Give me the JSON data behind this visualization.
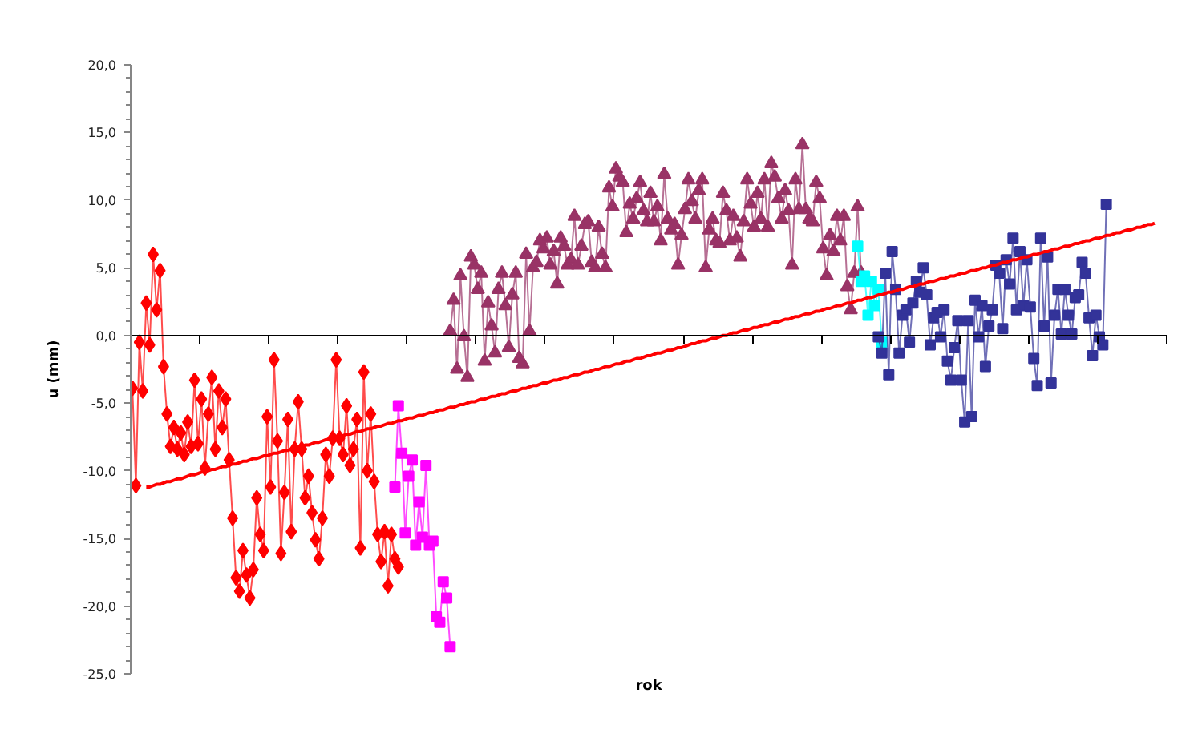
{
  "chart_data": {
    "type": "line",
    "xlabel": "rok",
    "ylabel": "u (mm)",
    "tick_labels": "y",
    "ylim": [
      -25,
      20
    ],
    "yticks": [
      {
        "value": -25,
        "label": "-25,0"
      },
      {
        "value": -20,
        "label": "-20,0"
      },
      {
        "value": -15,
        "label": "-15,0"
      },
      {
        "value": -10,
        "label": "-10,0"
      },
      {
        "value": -5,
        "label": "-5,0"
      },
      {
        "value": 0,
        "label": "0,0"
      },
      {
        "value": 5,
        "label": "5,0"
      },
      {
        "value": 10,
        "label": "10,0"
      },
      {
        "value": 15,
        "label": "15,0"
      },
      {
        "value": 20,
        "label": "20,0"
      }
    ],
    "categories": [
      null,
      null,
      null,
      null,
      null,
      null,
      null,
      null,
      null,
      null,
      null,
      null,
      null,
      null,
      null,
      null,
      null,
      null,
      null,
      null,
      null,
      null,
      null,
      null,
      null,
      null,
      null,
      null,
      null,
      null,
      null,
      null,
      null,
      null,
      null,
      null,
      null,
      null,
      null,
      null,
      null,
      null,
      null,
      null,
      null,
      null,
      null,
      null,
      null,
      null,
      null,
      null,
      null,
      null,
      null,
      null,
      null,
      null,
      null,
      null,
      null,
      null,
      null,
      null,
      null,
      null,
      null,
      null,
      null,
      null,
      null,
      null,
      null,
      null,
      null,
      null,
      null,
      null,
      null,
      null,
      null,
      null,
      null,
      null,
      null,
      null,
      null,
      null,
      null,
      null,
      null,
      null,
      null,
      null,
      null,
      null,
      null,
      null,
      null,
      null,
      null,
      null,
      null,
      null,
      null,
      null,
      null,
      null,
      null,
      null,
      null,
      null,
      null,
      null,
      null,
      null,
      null,
      null,
      null,
      null,
      null,
      null,
      null,
      null,
      null,
      null,
      null,
      null,
      null,
      null,
      null,
      null,
      null,
      null,
      null,
      null,
      null,
      null,
      null,
      null,
      null,
      null,
      null,
      null,
      null,
      null,
      null,
      null,
      null,
      null,
      null,
      null,
      null,
      null,
      null,
      null,
      null,
      null,
      null,
      null,
      null,
      null,
      null,
      null,
      null,
      null,
      null,
      null,
      null,
      null,
      null,
      null,
      null,
      null,
      null,
      null,
      null,
      null,
      null,
      null,
      null,
      null,
      null,
      null,
      null,
      null,
      null,
      null,
      null,
      null,
      null,
      null,
      null,
      null,
      null,
      null,
      null,
      null,
      null,
      null,
      null,
      null,
      null,
      null,
      null,
      null,
      null,
      null,
      null,
      null,
      null,
      null,
      null,
      null,
      null,
      null,
      null,
      null,
      null,
      null,
      null,
      null,
      null,
      null,
      null,
      null,
      null,
      null,
      null,
      null,
      null,
      null,
      null,
      null,
      null,
      null,
      null,
      null,
      null,
      null,
      null,
      null,
      null,
      null,
      null,
      null,
      null,
      null,
      null,
      null,
      null,
      null,
      null,
      null,
      null,
      null,
      null,
      null,
      null,
      null,
      null,
      null,
      null,
      null,
      null,
      null,
      null,
      null,
      null,
      null,
      null,
      null,
      null,
      null,
      null,
      null,
      null,
      null,
      null,
      null,
      null,
      null,
      null,
      null,
      null,
      null,
      null,
      null,
      null,
      null,
      null,
      null,
      null,
      null,
      null,
      null,
      null,
      null,
      null,
      null
    ],
    "series": [
      {
        "marker": "diamond",
        "color": "#ff0000",
        "values": [
          -3.9,
          -11.1,
          -0.5,
          -4.1,
          2.4,
          -0.7,
          6.0,
          1.9,
          4.8,
          -2.3,
          -5.8,
          -8.2,
          -6.8,
          -8.4,
          -7.2,
          -8.8,
          -6.4,
          -8.2,
          -3.3,
          -8.0,
          -4.7,
          -9.8,
          -5.8,
          -3.1,
          -8.4,
          -4.1,
          -6.8,
          -4.7,
          -9.2,
          -13.5,
          -17.9,
          -18.9,
          -15.9,
          -17.7,
          -19.4,
          -17.3,
          -12.0,
          -14.7,
          -15.9,
          -6.0,
          -11.2,
          -1.8,
          -7.8,
          -16.1,
          -11.6,
          -6.2,
          -14.5,
          -8.4,
          -4.9,
          -8.4,
          -12.0,
          -10.4,
          -13.1,
          -15.1,
          -16.5,
          -13.5,
          -8.8,
          -10.4,
          -7.6,
          -1.8,
          -7.6,
          -8.8,
          -5.2,
          -9.6,
          -8.4,
          -6.2,
          -15.7,
          -2.7,
          -10.0,
          -5.8,
          -10.8,
          -14.7,
          -16.7,
          -14.5,
          -18.5,
          -14.7,
          -16.5,
          -17.1,
          null,
          null,
          null,
          null,
          null,
          null,
          null,
          null,
          null,
          null,
          null,
          null,
          null,
          null,
          null,
          null,
          null,
          null,
          null,
          null,
          null,
          null,
          null,
          null,
          null,
          null,
          null,
          null,
          null,
          null,
          null,
          null,
          null,
          null,
          null,
          null,
          null,
          null,
          null,
          null,
          null,
          null,
          null,
          null,
          null,
          null,
          null,
          null,
          null,
          null,
          null,
          null,
          null,
          null,
          null,
          null,
          null,
          null,
          null,
          null,
          null,
          null,
          null,
          null,
          null,
          null,
          null,
          null,
          null,
          null,
          null,
          null,
          null,
          null,
          null,
          null,
          null,
          null,
          null,
          null,
          null,
          null,
          null,
          null,
          null,
          null,
          null,
          null,
          null,
          null,
          null,
          null,
          null,
          null,
          null,
          null,
          null,
          null,
          null,
          null,
          null,
          null,
          null,
          null,
          null,
          null,
          null,
          null,
          null,
          null,
          null,
          null,
          null,
          null,
          null,
          null,
          null,
          null,
          null,
          null,
          null,
          null,
          null,
          null,
          null,
          null,
          null,
          null,
          null,
          null,
          null,
          null,
          null,
          null,
          null,
          null,
          null,
          null,
          null,
          null,
          null,
          null,
          null,
          null,
          null,
          null,
          null,
          null,
          null,
          null,
          null,
          null,
          null,
          null,
          null,
          null,
          null,
          null,
          null,
          null,
          null,
          null,
          null,
          null,
          null,
          null,
          null,
          null,
          null,
          null,
          null,
          null,
          null,
          null,
          null,
          null,
          null,
          null,
          null,
          null,
          null,
          null,
          null,
          null,
          null,
          null,
          null,
          null,
          null,
          null,
          null,
          null,
          null,
          null,
          null,
          null,
          null,
          null,
          null,
          null,
          null,
          null,
          null,
          null,
          null,
          null,
          null,
          null,
          null,
          null,
          null,
          null,
          null,
          null,
          null,
          null,
          null,
          null,
          null,
          null,
          null,
          null
        ]
      },
      {
        "marker": "square",
        "color": "#ff00ff",
        "values": [
          null,
          null,
          null,
          null,
          null,
          null,
          null,
          null,
          null,
          null,
          null,
          null,
          null,
          null,
          null,
          null,
          null,
          null,
          null,
          null,
          null,
          null,
          null,
          null,
          null,
          null,
          null,
          null,
          null,
          null,
          null,
          null,
          null,
          null,
          null,
          null,
          null,
          null,
          null,
          null,
          null,
          null,
          null,
          null,
          null,
          null,
          null,
          null,
          null,
          null,
          null,
          null,
          null,
          null,
          null,
          null,
          null,
          null,
          null,
          null,
          null,
          null,
          null,
          null,
          null,
          null,
          null,
          null,
          null,
          null,
          null,
          null,
          null,
          null,
          null,
          null,
          -11.2,
          -5.2,
          -8.7,
          -14.6,
          -10.4,
          -9.2,
          -15.5,
          -12.3,
          -14.9,
          -9.6,
          -15.5,
          -15.2,
          -20.8,
          -21.2,
          -18.2,
          -19.4,
          -23.0,
          null,
          null,
          null,
          null,
          null,
          null,
          null,
          null,
          null,
          null,
          null,
          null,
          null,
          null,
          null,
          null,
          null,
          null,
          null,
          null,
          null,
          null,
          null,
          null,
          null,
          null,
          null,
          null,
          null,
          null,
          null,
          null,
          null,
          null,
          null,
          null,
          null,
          null,
          null,
          null,
          null,
          null,
          null,
          null,
          null,
          null,
          null,
          null,
          null,
          null,
          null,
          null,
          null,
          null,
          null,
          null,
          null,
          null,
          null,
          null,
          null,
          null,
          null,
          null,
          null,
          null,
          null,
          null,
          null,
          null,
          null,
          null,
          null,
          null,
          null,
          null,
          null,
          null,
          null,
          null,
          null,
          null,
          null,
          null,
          null,
          null,
          null,
          null,
          null,
          null,
          null,
          null,
          null,
          null,
          null,
          null,
          null,
          null,
          null,
          null,
          null,
          null,
          null,
          null,
          null,
          null,
          null,
          null,
          null,
          null,
          null,
          null,
          null,
          null,
          null,
          null,
          null,
          null,
          null,
          null,
          null,
          null,
          null,
          null,
          null,
          null,
          null,
          null,
          null,
          null,
          null,
          null,
          null,
          null,
          null,
          null,
          null,
          null,
          null,
          null,
          null,
          null,
          null,
          null,
          null,
          null,
          null,
          null,
          null,
          null,
          null,
          null,
          null,
          null,
          null,
          null,
          null,
          null,
          null,
          null,
          null,
          null,
          null,
          null,
          null,
          null,
          null,
          null,
          null,
          null,
          null,
          null,
          null,
          null,
          null,
          null,
          null,
          null,
          null,
          null,
          null,
          null,
          null,
          null,
          null,
          null,
          null,
          null,
          null,
          null,
          null,
          null,
          null,
          null,
          null,
          null,
          null,
          null,
          null,
          null,
          null,
          null,
          null,
          null,
          null,
          null,
          null
        ]
      },
      {
        "marker": "triangle",
        "color": "#993366",
        "values": [
          null,
          null,
          null,
          null,
          null,
          null,
          null,
          null,
          null,
          null,
          null,
          null,
          null,
          null,
          null,
          null,
          null,
          null,
          null,
          null,
          null,
          null,
          null,
          null,
          null,
          null,
          null,
          null,
          null,
          null,
          null,
          null,
          null,
          null,
          null,
          null,
          null,
          null,
          null,
          null,
          null,
          null,
          null,
          null,
          null,
          null,
          null,
          null,
          null,
          null,
          null,
          null,
          null,
          null,
          null,
          null,
          null,
          null,
          null,
          null,
          null,
          null,
          null,
          null,
          null,
          null,
          null,
          null,
          null,
          null,
          null,
          null,
          null,
          null,
          null,
          null,
          null,
          null,
          null,
          null,
          null,
          null,
          null,
          null,
          null,
          null,
          null,
          null,
          null,
          null,
          null,
          null,
          0.3,
          2.6,
          -2.5,
          4.4,
          -0.1,
          -3.1,
          5.8,
          5.2,
          3.4,
          4.6,
          -1.9,
          2.4,
          0.7,
          -1.3,
          3.4,
          4.6,
          2.2,
          -0.9,
          3.0,
          4.6,
          -1.7,
          -2.1,
          6.0,
          0.3,
          5.0,
          5.4,
          7.0,
          6.4,
          7.2,
          5.2,
          6.2,
          3.8,
          7.2,
          6.6,
          5.2,
          5.6,
          8.8,
          5.2,
          6.6,
          8.2,
          8.4,
          5.4,
          5.0,
          8.0,
          6.0,
          5.0,
          10.9,
          9.5,
          12.3,
          11.7,
          11.3,
          7.6,
          9.7,
          8.6,
          10.1,
          11.3,
          9.2,
          8.4,
          10.5,
          8.4,
          9.5,
          7.0,
          11.9,
          8.6,
          7.8,
          8.2,
          5.2,
          7.4,
          9.3,
          11.5,
          9.9,
          8.6,
          10.7,
          11.5,
          5.0,
          7.8,
          8.6,
          7.0,
          6.8,
          10.5,
          9.2,
          7.0,
          8.8,
          7.2,
          5.8,
          8.4,
          11.5,
          9.7,
          8.0,
          10.5,
          8.6,
          11.5,
          8.0,
          12.7,
          11.7,
          10.1,
          8.6,
          10.7,
          9.2,
          5.2,
          11.5,
          9.3,
          14.1,
          9.3,
          8.6,
          8.4,
          11.3,
          10.1,
          6.4,
          4.4,
          7.4,
          6.2,
          8.8,
          7.0,
          8.8,
          3.6,
          1.9,
          4.6,
          9.5,
          4.6,
          null,
          null,
          null,
          null,
          null,
          null,
          null,
          null,
          null,
          null,
          null,
          null,
          null,
          null,
          null,
          null,
          null,
          null,
          null,
          null,
          null,
          null,
          null,
          null,
          null,
          null,
          null,
          null,
          null,
          null,
          null,
          null,
          null,
          null,
          null,
          null,
          null,
          null,
          null,
          null,
          null,
          null,
          null,
          null,
          null,
          null,
          null,
          null,
          null,
          null,
          null,
          null,
          null,
          null,
          null,
          null,
          null,
          null,
          null,
          null,
          null,
          null,
          null,
          null,
          null,
          null,
          null,
          null,
          null,
          null,
          null,
          null,
          null,
          null,
          null,
          null,
          null,
          null,
          null,
          null,
          null,
          null,
          null,
          null,
          null,
          null,
          null,
          null
        ]
      },
      {
        "marker": "square",
        "color": "#00ffff",
        "values": [
          null,
          null,
          null,
          null,
          null,
          null,
          null,
          null,
          null,
          null,
          null,
          null,
          null,
          null,
          null,
          null,
          null,
          null,
          null,
          null,
          null,
          null,
          null,
          null,
          null,
          null,
          null,
          null,
          null,
          null,
          null,
          null,
          null,
          null,
          null,
          null,
          null,
          null,
          null,
          null,
          null,
          null,
          null,
          null,
          null,
          null,
          null,
          null,
          null,
          null,
          null,
          null,
          null,
          null,
          null,
          null,
          null,
          null,
          null,
          null,
          null,
          null,
          null,
          null,
          null,
          null,
          null,
          null,
          null,
          null,
          null,
          null,
          null,
          null,
          null,
          null,
          null,
          null,
          null,
          null,
          null,
          null,
          null,
          null,
          null,
          null,
          null,
          null,
          null,
          null,
          null,
          null,
          null,
          null,
          null,
          null,
          null,
          null,
          null,
          null,
          null,
          null,
          null,
          null,
          null,
          null,
          null,
          null,
          null,
          null,
          null,
          null,
          null,
          null,
          null,
          null,
          null,
          null,
          null,
          null,
          null,
          null,
          null,
          null,
          null,
          null,
          null,
          null,
          null,
          null,
          null,
          null,
          null,
          null,
          null,
          null,
          null,
          null,
          null,
          null,
          null,
          null,
          null,
          null,
          null,
          null,
          null,
          null,
          null,
          null,
          null,
          null,
          null,
          null,
          null,
          null,
          null,
          null,
          null,
          null,
          null,
          null,
          null,
          null,
          null,
          null,
          null,
          null,
          null,
          null,
          null,
          null,
          null,
          null,
          null,
          null,
          null,
          null,
          null,
          null,
          null,
          null,
          null,
          null,
          null,
          null,
          null,
          null,
          null,
          null,
          null,
          null,
          null,
          null,
          null,
          null,
          null,
          null,
          null,
          null,
          null,
          null,
          null,
          null,
          null,
          null,
          null,
          null,
          null,
          null,
          6.6,
          4.0,
          4.4,
          1.5,
          4.0,
          2.2,
          3.4,
          -0.5,
          null,
          null,
          null,
          null,
          null,
          null,
          null,
          null,
          null,
          null,
          null,
          null,
          null,
          null,
          null,
          null,
          null,
          null,
          null,
          null,
          null,
          null,
          null,
          null,
          null,
          null,
          null,
          null,
          null,
          null,
          null,
          null,
          null,
          null,
          null,
          null,
          null,
          null,
          null,
          null,
          null,
          null,
          null,
          null,
          null,
          null,
          null,
          null,
          null,
          null,
          null,
          null,
          null,
          null,
          null,
          null,
          null,
          null,
          null,
          null,
          null,
          null,
          null,
          null,
          null,
          null,
          null,
          null,
          null,
          null,
          null,
          null,
          null,
          null,
          null,
          null,
          null,
          null,
          null,
          null,
          null,
          null
        ]
      },
      {
        "marker": "square",
        "color": "#333399",
        "values": [
          null,
          null,
          null,
          null,
          null,
          null,
          null,
          null,
          null,
          null,
          null,
          null,
          null,
          null,
          null,
          null,
          null,
          null,
          null,
          null,
          null,
          null,
          null,
          null,
          null,
          null,
          null,
          null,
          null,
          null,
          null,
          null,
          null,
          null,
          null,
          null,
          null,
          null,
          null,
          null,
          null,
          null,
          null,
          null,
          null,
          null,
          null,
          null,
          null,
          null,
          null,
          null,
          null,
          null,
          null,
          null,
          null,
          null,
          null,
          null,
          null,
          null,
          null,
          null,
          null,
          null,
          null,
          null,
          null,
          null,
          null,
          null,
          null,
          null,
          null,
          null,
          null,
          null,
          null,
          null,
          null,
          null,
          null,
          null,
          null,
          null,
          null,
          null,
          null,
          null,
          null,
          null,
          null,
          null,
          null,
          null,
          null,
          null,
          null,
          null,
          null,
          null,
          null,
          null,
          null,
          null,
          null,
          null,
          null,
          null,
          null,
          null,
          null,
          null,
          null,
          null,
          null,
          null,
          null,
          null,
          null,
          null,
          null,
          null,
          null,
          null,
          null,
          null,
          null,
          null,
          null,
          null,
          null,
          null,
          null,
          null,
          null,
          null,
          null,
          null,
          null,
          null,
          null,
          null,
          null,
          null,
          null,
          null,
          null,
          null,
          null,
          null,
          null,
          null,
          null,
          null,
          null,
          null,
          null,
          null,
          null,
          null,
          null,
          null,
          null,
          null,
          null,
          null,
          null,
          null,
          null,
          null,
          null,
          null,
          null,
          null,
          null,
          null,
          null,
          null,
          null,
          null,
          null,
          null,
          null,
          null,
          null,
          null,
          null,
          null,
          null,
          null,
          null,
          null,
          null,
          null,
          null,
          null,
          null,
          null,
          null,
          null,
          null,
          null,
          null,
          null,
          null,
          null,
          null,
          null,
          null,
          null,
          null,
          null,
          null,
          null,
          -0.1,
          -1.3,
          4.6,
          -2.9,
          6.2,
          3.4,
          -1.3,
          1.5,
          1.9,
          -0.5,
          2.4,
          4.0,
          3.2,
          5.0,
          3.0,
          -0.7,
          1.3,
          1.7,
          -0.1,
          1.9,
          -1.9,
          -3.3,
          -0.9,
          1.1,
          -3.3,
          -6.4,
          1.1,
          -6.0,
          2.6,
          -0.1,
          2.2,
          -2.3,
          0.7,
          1.9,
          5.2,
          4.6,
          0.5,
          5.6,
          3.8,
          7.2,
          1.9,
          6.2,
          2.2,
          5.6,
          2.1,
          -1.7,
          -3.7,
          7.2,
          0.7,
          5.8,
          -3.5,
          1.5,
          3.4,
          0.1,
          3.4,
          1.5,
          0.1,
          2.8,
          3.0,
          5.4,
          4.6,
          1.3,
          -1.5,
          1.5,
          -0.1,
          -0.7,
          9.7,
          null,
          null,
          null,
          null,
          null,
          null,
          null,
          null,
          null,
          null,
          null,
          null,
          null,
          null,
          null,
          null,
          null
        ]
      },
      {
        "marker": "none",
        "color": "#ff0000",
        "values": [
          null,
          null,
          null,
          null,
          -11.2,
          -11.2,
          -11.1,
          -11.0,
          -11.0,
          -10.9,
          -10.8,
          -10.8,
          -10.7,
          -10.6,
          -10.6,
          -10.5,
          -10.4,
          -10.3,
          -10.3,
          -10.2,
          -10.1,
          -10.1,
          -10.0,
          -9.9,
          -9.9,
          -9.8,
          -9.7,
          -9.7,
          -9.6,
          -9.5,
          -9.5,
          -9.4,
          -9.3,
          -9.3,
          -9.2,
          -9.1,
          -9.1,
          -9.0,
          -8.9,
          -8.9,
          -8.8,
          -8.7,
          -8.7,
          -8.6,
          -8.5,
          -8.5,
          -8.4,
          -8.3,
          -8.3,
          -8.2,
          -8.1,
          -8.1,
          -8.0,
          -7.9,
          -7.9,
          -7.8,
          -7.7,
          -7.7,
          -7.6,
          -7.5,
          -7.5,
          -7.4,
          -7.3,
          -7.3,
          -7.2,
          -7.1,
          -7.1,
          -7.0,
          -6.9,
          -6.9,
          -6.8,
          -6.7,
          -6.7,
          -6.6,
          -6.5,
          -6.5,
          -6.4,
          -6.3,
          -6.3,
          -6.2,
          -6.1,
          -6.1,
          -6.0,
          -5.9,
          -5.9,
          -5.8,
          -5.7,
          -5.7,
          -5.6,
          -5.5,
          -5.5,
          -5.4,
          -5.3,
          -5.3,
          -5.2,
          -5.1,
          -5.1,
          -5.0,
          -4.9,
          -4.9,
          -4.8,
          -4.7,
          -4.7,
          -4.6,
          -4.5,
          -4.5,
          -4.4,
          -4.3,
          -4.3,
          -4.2,
          -4.1,
          -4.1,
          -4.0,
          -3.9,
          -3.9,
          -3.8,
          -3.7,
          -3.7,
          -3.6,
          -3.5,
          -3.5,
          -3.4,
          -3.3,
          -3.3,
          -3.2,
          -3.1,
          -3.1,
          -3.0,
          -2.9,
          -2.9,
          -2.8,
          -2.7,
          -2.7,
          -2.6,
          -2.5,
          -2.5,
          -2.4,
          -2.3,
          -2.3,
          -2.2,
          -2.1,
          -2.1,
          -2.0,
          -1.9,
          -1.9,
          -1.8,
          -1.7,
          -1.7,
          -1.6,
          -1.5,
          -1.5,
          -1.4,
          -1.3,
          -1.3,
          -1.2,
          -1.1,
          -1.1,
          -1.0,
          -0.9,
          -0.9,
          -0.8,
          -0.7,
          -0.6,
          -0.6,
          -0.5,
          -0.4,
          -0.4,
          -0.3,
          -0.2,
          -0.2,
          -0.1,
          0.0,
          0.0,
          0.1,
          0.2,
          0.2,
          0.3,
          0.4,
          0.4,
          0.5,
          0.6,
          0.6,
          0.7,
          0.8,
          0.8,
          0.9,
          1.0,
          1.0,
          1.1,
          1.2,
          1.2,
          1.3,
          1.4,
          1.4,
          1.5,
          1.6,
          1.6,
          1.7,
          1.8,
          1.8,
          1.9,
          2.0,
          2.0,
          2.1,
          2.2,
          2.2,
          2.3,
          2.4,
          2.4,
          2.5,
          2.6,
          2.6,
          2.7,
          2.8,
          2.8,
          2.9,
          3.0,
          3.0,
          3.1,
          3.2,
          3.2,
          3.3,
          3.4,
          3.4,
          3.5,
          3.6,
          3.6,
          3.7,
          3.8,
          3.8,
          3.9,
          4.0,
          4.0,
          4.1,
          4.2,
          4.2,
          4.3,
          4.4,
          4.4,
          4.5,
          4.6,
          4.6,
          4.7,
          4.8,
          4.8,
          4.9,
          5.0,
          5.0,
          5.1,
          5.2,
          5.2,
          5.3,
          5.4,
          5.4,
          5.5,
          5.6,
          5.6,
          5.7,
          5.8,
          5.8,
          5.9,
          6.0,
          6.0,
          6.1,
          6.2,
          6.2,
          6.3,
          6.4,
          6.4,
          6.5,
          6.6,
          6.6,
          6.7,
          6.8,
          6.8,
          6.9,
          7.0,
          7.0,
          7.1,
          7.2,
          7.2,
          7.3,
          7.4,
          7.4,
          7.5,
          7.6,
          7.6,
          7.7,
          7.8,
          7.8,
          7.9,
          8.0,
          8.0,
          8.1,
          8.2,
          8.2,
          8.3,
          null,
          null,
          null
        ]
      }
    ]
  }
}
